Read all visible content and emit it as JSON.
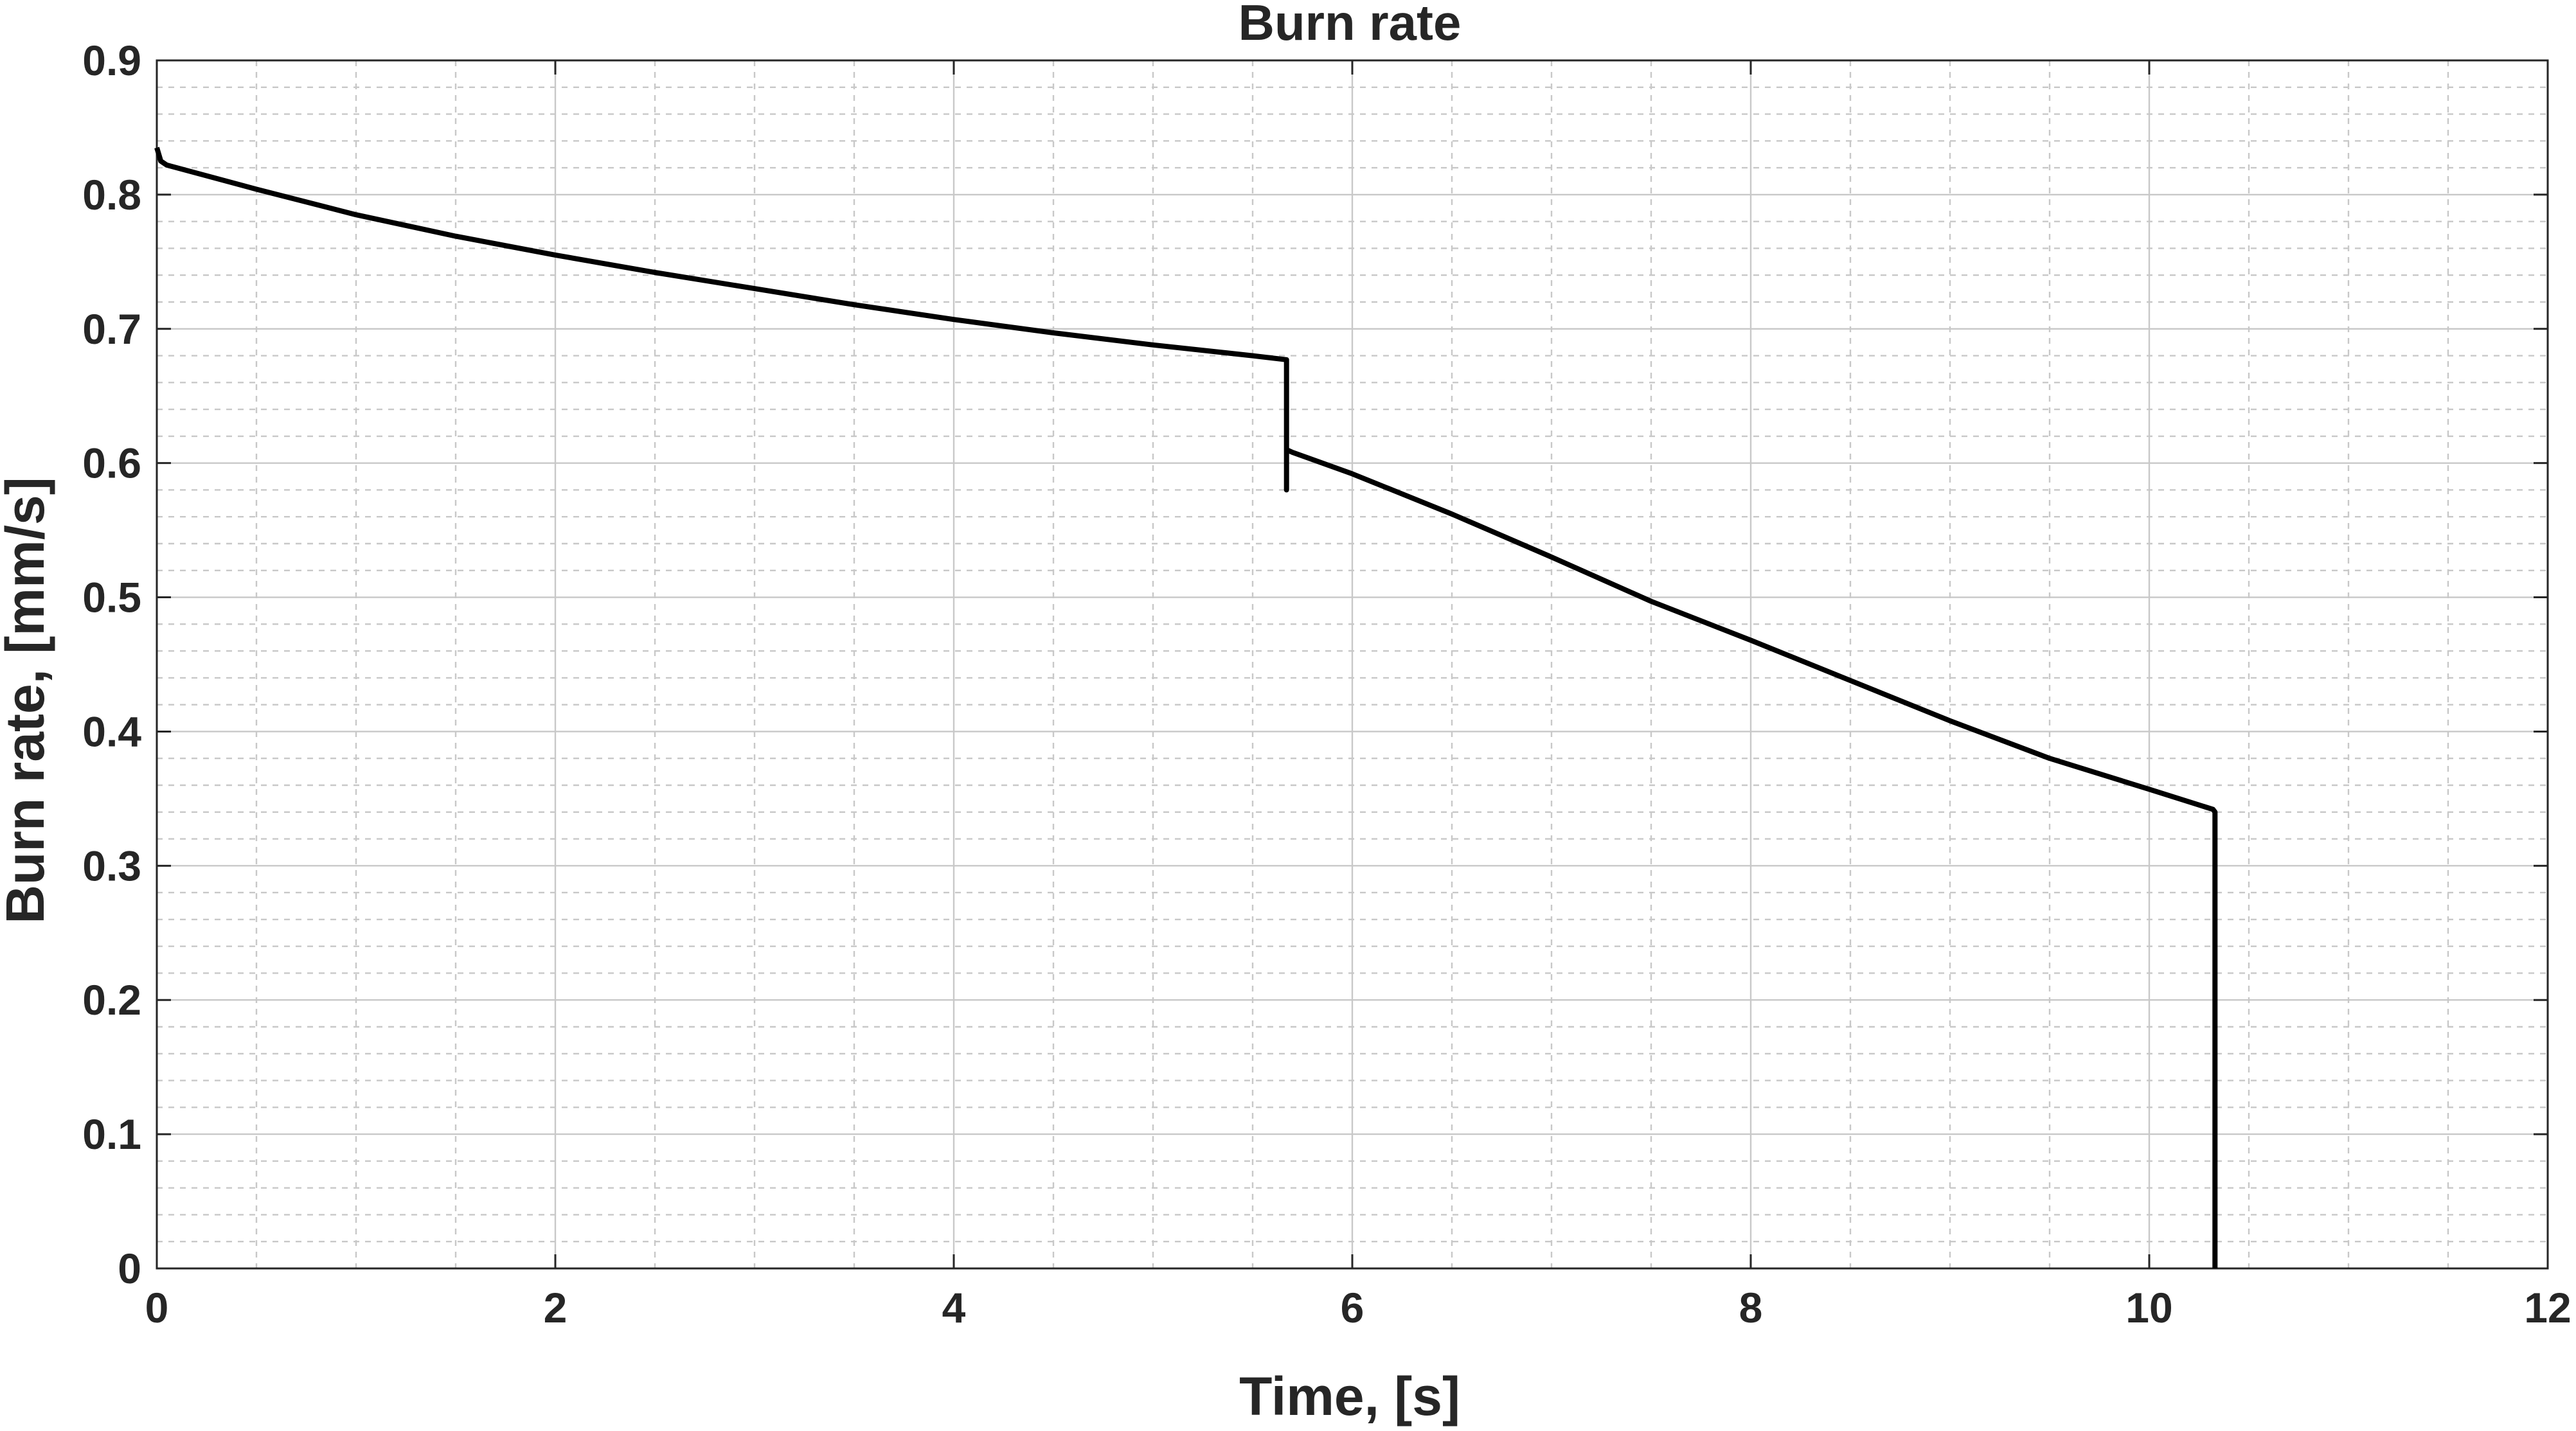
{
  "chart_data": {
    "type": "line",
    "title": "Burn rate",
    "xlabel": "Time, [s]",
    "ylabel": "Burn rate, [mm/s]",
    "xlim": [
      0,
      12
    ],
    "ylim": [
      0,
      0.9
    ],
    "xticks": [
      0,
      2,
      4,
      6,
      8,
      10,
      12
    ],
    "yticks": [
      0,
      0.1,
      0.2,
      0.3,
      0.4,
      0.5,
      0.6,
      0.7,
      0.8,
      0.9
    ],
    "xtick_labels": [
      "0",
      "2",
      "4",
      "6",
      "8",
      "10",
      "12"
    ],
    "ytick_labels": [
      "0",
      "0.1",
      "0.2",
      "0.3",
      "0.4",
      "0.5",
      "0.6",
      "0.7",
      "0.8",
      "0.9"
    ],
    "grid": true,
    "minor_grid": true,
    "line_color": "#000000",
    "series": [
      {
        "x": [
          0.0,
          0.02,
          0.05,
          0.5,
          1.0,
          1.5,
          2.0,
          2.5,
          3.0,
          3.5,
          4.0,
          4.5,
          5.0,
          5.5,
          5.67,
          5.67,
          5.67,
          5.7,
          6.0,
          6.5,
          7.0,
          7.5,
          8.0,
          8.5,
          9.0,
          9.5,
          10.0,
          10.32,
          10.33,
          10.33
        ],
        "y": [
          0.835,
          0.825,
          0.822,
          0.804,
          0.785,
          0.769,
          0.755,
          0.742,
          0.73,
          0.718,
          0.707,
          0.697,
          0.688,
          0.68,
          0.677,
          0.58,
          0.61,
          0.608,
          0.592,
          0.562,
          0.53,
          0.497,
          0.468,
          0.438,
          0.408,
          0.38,
          0.357,
          0.342,
          0.34,
          0.0
        ]
      }
    ]
  }
}
